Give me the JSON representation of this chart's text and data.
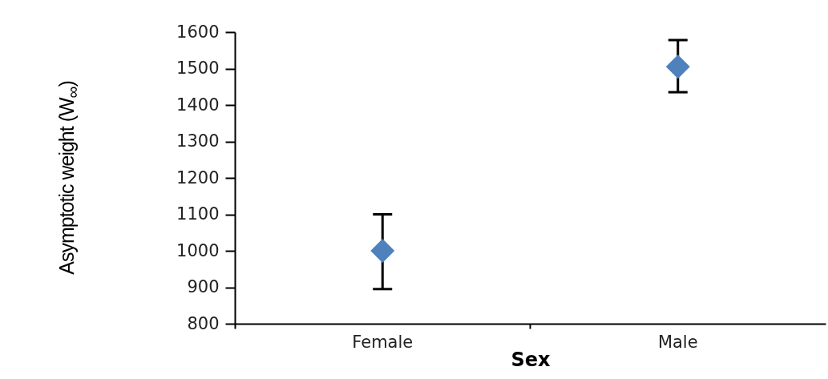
{
  "chart_data": {
    "type": "scatter",
    "xlabel": "Sex",
    "ylabel": "Asymptotic weight (W$_{∞}$)",
    "categories": [
      "Female",
      "Male"
    ],
    "series": [
      {
        "color": "#4f81bd",
        "values": [
          1000,
          1505
        ],
        "errors": [
          [
            895,
            1100
          ],
          [
            1435,
            1578
          ]
        ]
      }
    ],
    "ylim": [
      800,
      1600
    ],
    "yticks": [
      800,
      900,
      1000,
      1100,
      1200,
      1300,
      1400,
      1500,
      1600
    ],
    "grid": false,
    "marker": "diamond"
  }
}
